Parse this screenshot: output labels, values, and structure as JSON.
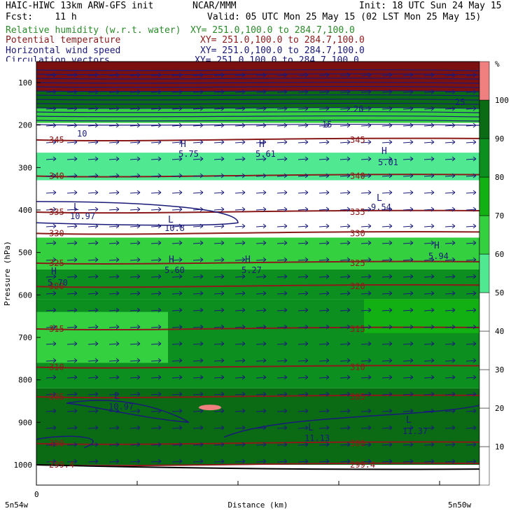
{
  "header": {
    "model_line": "HAIC-HIWC 13km ARW-GFS init",
    "org": "NCAR/MMM",
    "init": "Init: 18 UTC Sun 24 May 15",
    "fcst": "Fcst:    11 h",
    "valid": "Valid: 05 UTC Mon 25 May 15 (02 LST Mon 25 May 15)"
  },
  "legend": [
    {
      "label": "Relative humidity (w.r.t. water)",
      "xy": "XY= 251.0,100.0 to 284.7,100.0",
      "color": "#2a8a2a"
    },
    {
      "label": "Potential temperature",
      "xy": "XY= 251.0,100.0 to 284.7,100.0",
      "color": "#8b1a1a"
    },
    {
      "label": "Horizontal wind speed",
      "xy": "XY= 251.0,100.0 to 284.7,100.0",
      "color": "#1a1a7a"
    },
    {
      "label": "Circulation vectors",
      "xy": "XY= 251.0,100.0 to 284.7,100.0",
      "color": "#1a1a7a"
    }
  ],
  "colorbar": {
    "unit": "%",
    "ticks": [
      "10",
      "20",
      "30",
      "40",
      "50",
      "60",
      "70",
      "80",
      "90",
      "100"
    ],
    "colors": [
      "#ffffff",
      "#ffffff",
      "#ffffff",
      "#ffffff",
      "#ffffff",
      "#50e890",
      "#35d040",
      "#12b012",
      "#0d8f20",
      "#0a6b14",
      "#f08080"
    ]
  },
  "chart_data": {
    "type": "heatmap",
    "ylabel": "Pressure (hPa)",
    "xlabel": "Distance (km)",
    "y_ticks": [
      "100",
      "200",
      "300",
      "400",
      "500",
      "600",
      "700",
      "800",
      "900",
      "1000"
    ],
    "x_ticks": [
      "0"
    ],
    "x_left_label": "5n54w",
    "x_right_label": "5n50w",
    "ylim": [
      1050,
      70
    ],
    "rh_layers_pressure_top_to_bottom": [
      {
        "from": 75,
        "to": 160,
        "rh": 95
      },
      {
        "from": 160,
        "to": 195,
        "rh": 60
      },
      {
        "from": 195,
        "to": 225,
        "rh": 5
      },
      {
        "from": 225,
        "to": 265,
        "rh": 5
      },
      {
        "from": 265,
        "to": 330,
        "rh": 55
      },
      {
        "from": 330,
        "to": 465,
        "rh": 5
      },
      {
        "from": 465,
        "to": 540,
        "rh": 60
      },
      {
        "from": 540,
        "to": 610,
        "rh": 85
      },
      {
        "from": 610,
        "to": 820,
        "rh": 85
      },
      {
        "from": 820,
        "to": 1000,
        "rh": 95
      }
    ],
    "theta_isolines": [
      {
        "label": "345",
        "p": 235
      },
      {
        "label": "340",
        "p": 320
      },
      {
        "label": "335",
        "p": 405
      },
      {
        "label": "330",
        "p": 455
      },
      {
        "label": "325",
        "p": 525
      },
      {
        "label": "320",
        "p": 580
      },
      {
        "label": "315",
        "p": 680
      },
      {
        "label": "310",
        "p": 770
      },
      {
        "label": "305",
        "p": 840
      },
      {
        "label": "300",
        "p": 950
      },
      {
        "label": "299.4",
        "p": 1000
      }
    ],
    "wind_labels": [
      "10",
      "15",
      "20",
      "25",
      "10.97",
      "10.8",
      "9.54",
      "5.75",
      "5.61",
      "5.01",
      "5.60",
      "5.27",
      "5.94",
      "5.70",
      "10.97",
      "11.13",
      "11.37"
    ],
    "extrema_labels": [
      "L",
      "H"
    ]
  }
}
